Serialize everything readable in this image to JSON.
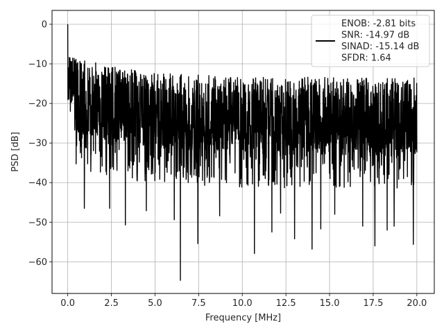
{
  "chart_data": {
    "type": "line",
    "title": "",
    "xlabel": "Frequency [MHz]",
    "ylabel": "PSD [dB]",
    "xlim": [
      -0.9,
      21.0
    ],
    "ylim": [
      -68,
      3.5
    ],
    "grid": true,
    "legend_position": "top-right",
    "line_color": "#000000",
    "x_ticks": [
      {
        "value": 0.0,
        "label": "0.0"
      },
      {
        "value": 2.5,
        "label": "2.5"
      },
      {
        "value": 5.0,
        "label": "5.0"
      },
      {
        "value": 7.5,
        "label": "7.5"
      },
      {
        "value": 10.0,
        "label": "10.0"
      },
      {
        "value": 12.5,
        "label": "12.5"
      },
      {
        "value": 15.0,
        "label": "15.0"
      },
      {
        "value": 17.5,
        "label": "17.5"
      },
      {
        "value": 20.0,
        "label": "20.0"
      }
    ],
    "y_ticks": [
      {
        "value": 0,
        "label": "0"
      },
      {
        "value": -10,
        "label": "−10"
      },
      {
        "value": -20,
        "label": "−20"
      },
      {
        "value": -30,
        "label": "−30"
      },
      {
        "value": -40,
        "label": "−40"
      },
      {
        "value": -50,
        "label": "−50"
      },
      {
        "value": -60,
        "label": "−60"
      }
    ],
    "legend_lines": [
      "ENOB: -2.81 bits",
      "SNR: -14.97 dB",
      "SINAD: -15.14 dB",
      "SFDR: 1.64"
    ],
    "series": [
      {
        "x_range": [
          0,
          20
        ],
        "points": 2000,
        "peak": 0,
        "baseline": -26.5,
        "envelope_top": -14,
        "envelope_bottom": -36,
        "notable_points": [
          {
            "x": 0.0,
            "y": 0.0
          },
          {
            "x": 0.1,
            "y": -11.5
          },
          {
            "x": 0.15,
            "y": -22.0
          },
          {
            "x": 0.95,
            "y": -46.5
          },
          {
            "x": 2.4,
            "y": -46.5
          },
          {
            "x": 3.3,
            "y": -50.7
          },
          {
            "x": 4.5,
            "y": -47.1
          },
          {
            "x": 6.1,
            "y": -49.4
          },
          {
            "x": 6.45,
            "y": -64.7
          },
          {
            "x": 7.45,
            "y": -55.4
          },
          {
            "x": 8.7,
            "y": -48.4
          },
          {
            "x": 10.7,
            "y": -57.9
          },
          {
            "x": 11.7,
            "y": -52.5
          },
          {
            "x": 12.2,
            "y": -47.7
          },
          {
            "x": 13.0,
            "y": -54.2
          },
          {
            "x": 14.0,
            "y": -56.8
          },
          {
            "x": 14.5,
            "y": -51.7
          },
          {
            "x": 15.3,
            "y": -48.0
          },
          {
            "x": 16.9,
            "y": -51.0
          },
          {
            "x": 17.6,
            "y": -56.0
          },
          {
            "x": 18.3,
            "y": -52.0
          },
          {
            "x": 18.7,
            "y": -51.0
          },
          {
            "x": 19.8,
            "y": -55.6
          }
        ]
      }
    ]
  }
}
